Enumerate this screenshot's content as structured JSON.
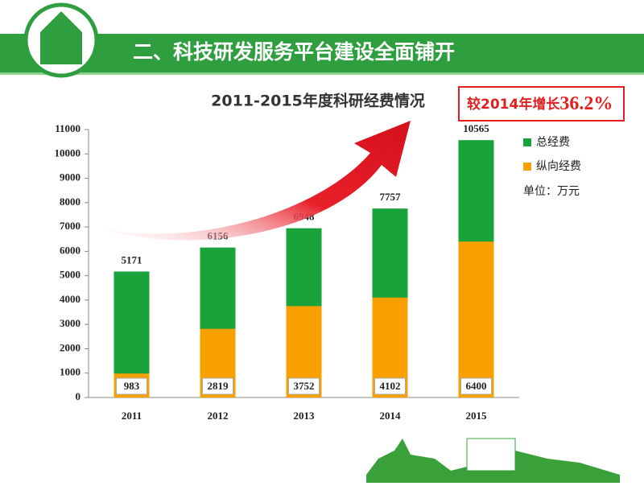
{
  "header": {
    "title": "二、科技研发服务平台建设全面铺开"
  },
  "chart_data": {
    "type": "bar",
    "title": "2011-2015年度科研经费情况",
    "annotation": {
      "text": "较2014年增长",
      "highlight": "36.2%"
    },
    "unit_note": "单位：万元",
    "categories": [
      "2011",
      "2012",
      "2013",
      "2014",
      "2015"
    ],
    "series": [
      {
        "name": "总经费",
        "color": "#1aa33a",
        "values": [
          5171,
          6156,
          6948,
          7757,
          10565
        ]
      },
      {
        "name": "纵向经费",
        "color": "#f7a000",
        "values": [
          983,
          2819,
          3752,
          4102,
          6400
        ]
      }
    ],
    "ylim": [
      0,
      11000
    ],
    "yticks": [
      0,
      1000,
      2000,
      3000,
      4000,
      5000,
      6000,
      7000,
      8000,
      9000,
      10000,
      11000
    ],
    "grid": false
  }
}
